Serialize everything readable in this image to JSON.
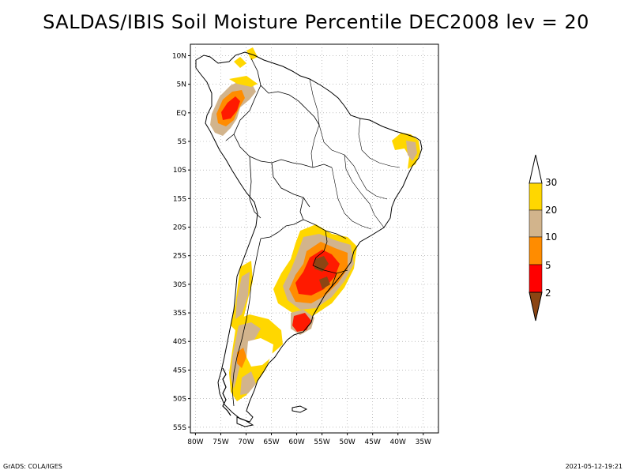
{
  "title": "SALDAS/IBIS Soil Moisture Percentile DEC2008 lev = 20",
  "footer": {
    "left": "GrADS: COLA/IGES",
    "right": "2021-05-12-19:21"
  },
  "map": {
    "region": "South America",
    "lon_range": [
      -81,
      -32
    ],
    "lat_range": [
      -56,
      12
    ],
    "lat_ticks": [
      {
        "value": 10,
        "label": "10N"
      },
      {
        "value": 5,
        "label": "5N"
      },
      {
        "value": 0,
        "label": "EQ"
      },
      {
        "value": -5,
        "label": "5S"
      },
      {
        "value": -10,
        "label": "10S"
      },
      {
        "value": -15,
        "label": "15S"
      },
      {
        "value": -20,
        "label": "20S"
      },
      {
        "value": -25,
        "label": "25S"
      },
      {
        "value": -30,
        "label": "30S"
      },
      {
        "value": -35,
        "label": "35S"
      },
      {
        "value": -40,
        "label": "40S"
      },
      {
        "value": -45,
        "label": "45S"
      },
      {
        "value": -50,
        "label": "50S"
      },
      {
        "value": -55,
        "label": "55S"
      }
    ],
    "lon_ticks": [
      {
        "value": -80,
        "label": "80W"
      },
      {
        "value": -75,
        "label": "75W"
      },
      {
        "value": -70,
        "label": "70W"
      },
      {
        "value": -65,
        "label": "65W"
      },
      {
        "value": -60,
        "label": "60W"
      },
      {
        "value": -55,
        "label": "55W"
      },
      {
        "value": -50,
        "label": "50W"
      },
      {
        "value": -45,
        "label": "45W"
      },
      {
        "value": -40,
        "label": "40W"
      },
      {
        "value": -35,
        "label": "35W"
      }
    ]
  },
  "colorbar": {
    "levels": [
      "30",
      "20",
      "10",
      "5",
      "2"
    ],
    "colors": {
      "top_arrow": "#ffffff",
      "band_20_30": "#ffd700",
      "band_10_20": "#d2b48c",
      "band_5_10": "#ff8c00",
      "band_2_5": "#ff0000",
      "bottom_arrow": "#8b4513"
    }
  },
  "colors": {
    "lt2": "#8b4513",
    "p2_5": "#ff1a00",
    "p5_10": "#ff8c00",
    "p10_20": "#d2b48c",
    "p20_30": "#ffd700",
    "coast": "#000000"
  }
}
